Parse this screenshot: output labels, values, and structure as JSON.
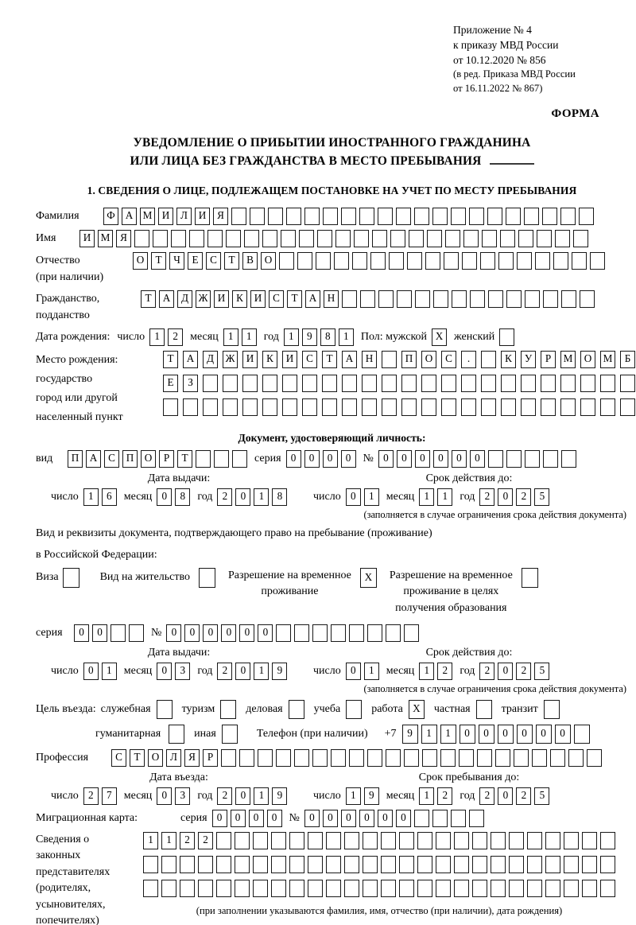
{
  "header": {
    "appendix_lines": [
      "Приложение № 4",
      "к приказу МВД России",
      "от 10.12.2020 № 856"
    ],
    "edition_lines": [
      "(в ред. Приказа МВД России",
      "от 16.11.2022 № 867)"
    ],
    "form_label": "ФОРМА"
  },
  "title": {
    "line1": "УВЕДОМЛЕНИЕ О ПРИБЫТИИ ИНОСТРАННОГО ГРАЖДАНИНА",
    "line2": "ИЛИ ЛИЦА БЕЗ ГРАЖДАНСТВА В МЕСТО ПРЕБЫВАНИЯ"
  },
  "section1": {
    "heading": "1. СВЕДЕНИЯ О ЛИЦЕ, ПОДЛЕЖАЩЕМ ПОСТАНОВКЕ НА УЧЕТ ПО МЕСТУ ПРЕБЫВАНИЯ"
  },
  "labels": {
    "day": "число",
    "month": "месяц",
    "year": "год"
  },
  "person": {
    "surname": {
      "label": "Фамилия",
      "value": "ФАМИЛИЯ"
    },
    "name": {
      "label": "Имя",
      "value": "ИМЯ"
    },
    "patronymic": {
      "label": "Отчество",
      "label2": "(при наличии)",
      "value": "ОТЧЕСТВО"
    },
    "citizenship": {
      "label": "Гражданство,",
      "label2": "подданство",
      "value": "ТАДЖИКИСТАН"
    },
    "birth_date": {
      "label": "Дата рождения:",
      "day": "12",
      "month": "11",
      "year": "1981"
    },
    "sex": {
      "label": "Пол: мужской",
      "male": "X",
      "female_label": "женский",
      "female": ""
    },
    "birth_place": {
      "labels": [
        "Место рождения:",
        "государство",
        "город или другой",
        "населенный пункт"
      ],
      "row1": "ТАДЖИКИСТАН ПОС. КУРМОМБ",
      "row2": "ЕЗ",
      "row3": ""
    }
  },
  "identity_doc": {
    "heading": "Документ, удостоверяющий личность:",
    "kind_label": "вид",
    "kind": "ПАСПОРТ",
    "series_label": "серия",
    "series": "0000",
    "number_label": "№",
    "number": "000000",
    "issue": {
      "heading": "Дата выдачи:",
      "day": "16",
      "month": "08",
      "year": "2018"
    },
    "expiry": {
      "heading": "Срок действия до:",
      "day": "01",
      "month": "11",
      "year": "2025"
    },
    "note": "(заполняется в случае ограничения срока действия документа)"
  },
  "residence_doc": {
    "intro1": "Вид и реквизиты документа, подтверждающего право на пребывание (проживание)",
    "intro2": "в Российской Федерации:",
    "visa": {
      "label": "Виза",
      "value": ""
    },
    "residence_permit": {
      "label": "Вид на жительство",
      "value": ""
    },
    "temp_permit": {
      "label1": "Разрешение на временное",
      "label2": "проживание",
      "value": "X"
    },
    "edu_permit": {
      "label1": "Разрешение на временное",
      "label2": "проживание в целях",
      "label3": "получения образования",
      "value": ""
    },
    "series_label": "серия",
    "series": "00",
    "number_label": "№",
    "number": "000000",
    "issue": {
      "heading": "Дата выдачи:",
      "day": "01",
      "month": "03",
      "year": "2019"
    },
    "expiry": {
      "heading": "Срок действия до:",
      "day": "01",
      "month": "12",
      "year": "2025"
    },
    "note": "(заполняется в случае ограничения срока действия документа)"
  },
  "visit": {
    "purpose_label": "Цель въезда:",
    "options_line1": [
      {
        "label": "служебная",
        "value": ""
      },
      {
        "label": "туризм",
        "value": ""
      },
      {
        "label": "деловая",
        "value": ""
      },
      {
        "label": "учеба",
        "value": ""
      },
      {
        "label": "работа",
        "value": "X"
      },
      {
        "label": "частная",
        "value": ""
      },
      {
        "label": "транзит",
        "value": ""
      }
    ],
    "options_line2": [
      {
        "label": "гуманитарная",
        "value": ""
      },
      {
        "label": "иная",
        "value": ""
      }
    ],
    "phone_label": "Телефон (при наличии)",
    "phone_prefix": "+7",
    "phone": "911000000",
    "profession_label": "Профессия",
    "profession": "СТОЛЯР",
    "entry": {
      "heading": "Дата въезда:",
      "day": "27",
      "month": "03",
      "year": "2019"
    },
    "stay": {
      "heading": "Срок пребывания до:",
      "day": "19",
      "month": "12",
      "year": "2025"
    },
    "migration_card": {
      "label": "Миграционная карта:",
      "series_label": "серия",
      "series": "0000",
      "number_label": "№",
      "number": "000000"
    }
  },
  "representatives": {
    "labels": [
      "Сведения о",
      "законных",
      "представителях",
      "(родителях,",
      "усыновителях,",
      "попечителях)"
    ],
    "row1": "1122",
    "row2": "",
    "row3": "",
    "note": "(при заполнении указываются фамилия, имя, отчество (при наличии), дата рождения)"
  }
}
